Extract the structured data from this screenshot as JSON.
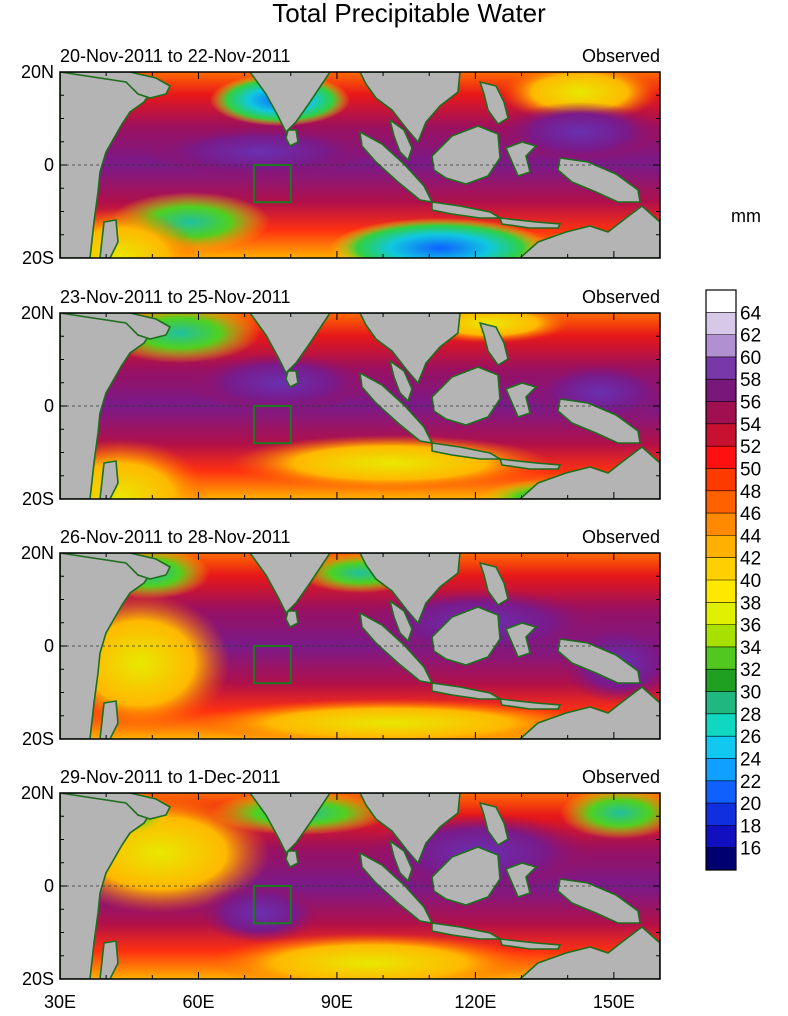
{
  "title": "Total Precipitable Water",
  "panels": [
    {
      "date_range": "20-Nov-2011 to 22-Nov-2011",
      "label": "Observed"
    },
    {
      "date_range": "23-Nov-2011 to 25-Nov-2011",
      "label": "Observed"
    },
    {
      "date_range": "26-Nov-2011 to 28-Nov-2011",
      "label": "Observed"
    },
    {
      "date_range": "29-Nov-2011 to 1-Dec-2011",
      "label": "Observed"
    }
  ],
  "lat_labels": [
    "20N",
    "0",
    "20S"
  ],
  "lon_labels": [
    "30E",
    "60E",
    "90E",
    "120E",
    "150E"
  ],
  "colorbar": {
    "units": "mm",
    "tick_labels": [
      "64",
      "62",
      "60",
      "58",
      "56",
      "54",
      "52",
      "50",
      "48",
      "46",
      "44",
      "42",
      "40",
      "38",
      "36",
      "34",
      "32",
      "30",
      "28",
      "26",
      "24",
      "22",
      "20",
      "18",
      "16"
    ]
  },
  "colors": {
    "land": "#b4b4b4",
    "coast": "#1e6e1e",
    "box": "#1e7a1e"
  }
}
